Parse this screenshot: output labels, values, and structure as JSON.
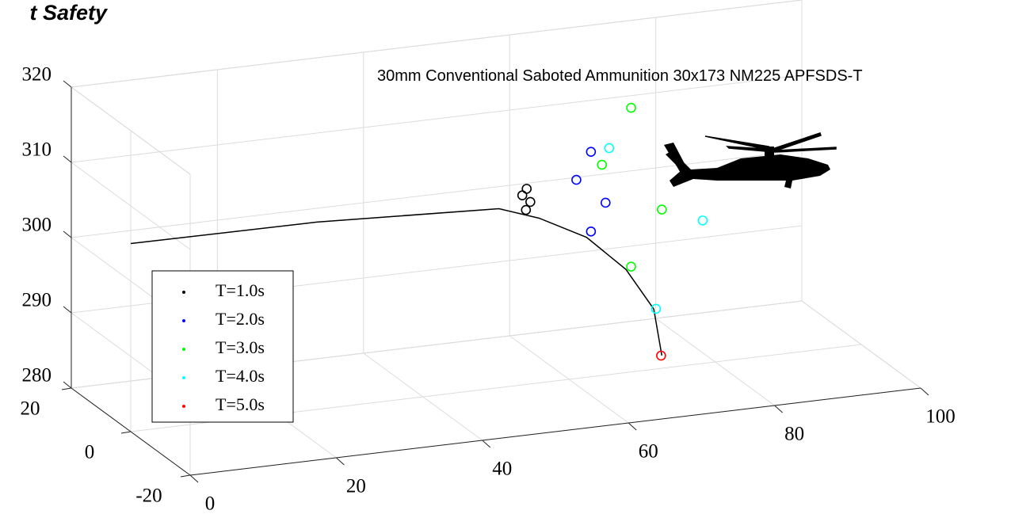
{
  "chart_data": {
    "type": "scatter3d",
    "title": "t Safety",
    "annotation": "30mm Conventional Saboted Ammunition 30x173 NM225 APFSDS-T",
    "xlim": [
      0,
      100
    ],
    "ylim": [
      -20,
      20
    ],
    "zlim": [
      280,
      320
    ],
    "xticks": [
      0,
      20,
      40,
      60,
      80,
      100
    ],
    "yticks": [
      -20,
      0,
      20
    ],
    "zticks": [
      280,
      290,
      300,
      310,
      320
    ],
    "grid": true,
    "line": {
      "color": "#000000",
      "x": [
        0,
        25.5,
        50.4,
        55.9,
        62.4,
        67.8,
        71.6,
        72.7
      ],
      "y": [
        0,
        0,
        0,
        0,
        0,
        0,
        0,
        0
      ],
      "z": [
        305.0,
        304.9,
        303.8,
        301.9,
        298.6,
        293.7,
        288.0,
        281.7
      ]
    },
    "series": [
      {
        "name": "T=1.0s",
        "color": "#000000",
        "x": [
          54.1,
          54.7,
          53.6,
          54.2
        ],
        "y": [
          0,
          0,
          0,
          0
        ],
        "z": [
          303.2,
          304.2,
          305.2,
          306.0
        ]
      },
      {
        "name": "T=2.0s",
        "color": "#0000ff",
        "x": [
          63.0,
          61.0,
          63.0,
          65.0
        ],
        "y": [
          0,
          0,
          0,
          0
        ],
        "z": [
          299.3,
          306.4,
          309.9,
          302.9
        ]
      },
      {
        "name": "T=3.0s",
        "color": "#00ff00",
        "x": [
          68.5,
          72.7,
          64.5,
          68.5
        ],
        "y": [
          0,
          0,
          0,
          0
        ],
        "z": [
          294.0,
          301.1,
          308.0,
          315.1
        ]
      },
      {
        "name": "T=4.0s",
        "color": "#00ffff",
        "x": [
          71.9,
          78.3,
          65.5
        ],
        "y": [
          0,
          0,
          0
        ],
        "z": [
          288.0,
          299.0,
          310.1
        ]
      },
      {
        "name": "T=5.0s",
        "color": "#ff0000",
        "x": [
          72.6
        ],
        "y": [
          0
        ],
        "z": [
          281.7
        ]
      }
    ]
  }
}
